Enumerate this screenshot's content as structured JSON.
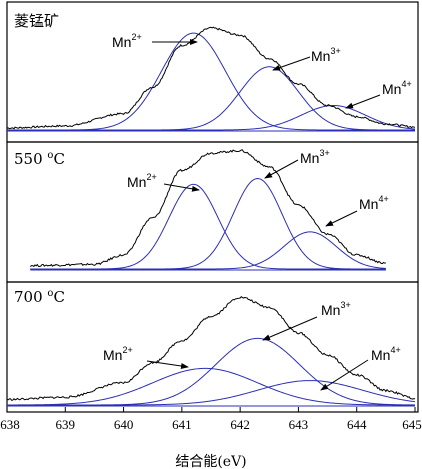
{
  "chart_data": {
    "type": "line",
    "xlabel": "结合能(eV)",
    "xlim": [
      638,
      645
    ],
    "x_ticks": [
      "638",
      "639",
      "640",
      "641",
      "642",
      "643",
      "644",
      "645"
    ],
    "panels": [
      {
        "label": "菱锰矿",
        "envelope": {
          "x": [
            638.0,
            639.0,
            640.0,
            640.5,
            641.0,
            641.5,
            642.0,
            642.5,
            643.0,
            643.5,
            644.0,
            644.5,
            645.0
          ],
          "y": [
            0.02,
            0.04,
            0.16,
            0.42,
            0.83,
            1.0,
            0.93,
            0.7,
            0.45,
            0.24,
            0.13,
            0.06,
            0.03
          ]
        },
        "peaks": [
          {
            "name": "Mn2+",
            "center": 641.2,
            "height": 0.95,
            "sigma": 0.55
          },
          {
            "name": "Mn3+",
            "center": 642.5,
            "height": 0.62,
            "sigma": 0.5
          },
          {
            "name": "Mn4+",
            "center": 643.6,
            "height": 0.24,
            "sigma": 0.55
          }
        ],
        "labels": [
          {
            "base": "Mn",
            "sup": "2+"
          },
          {
            "base": "Mn",
            "sup": "3+"
          },
          {
            "base": "Mn",
            "sup": "4+"
          }
        ]
      },
      {
        "label": "550 °C",
        "envelope": {
          "x": [
            638.4,
            639.5,
            640.0,
            640.5,
            641.0,
            641.5,
            642.0,
            642.5,
            643.0,
            643.5,
            644.0,
            644.5
          ],
          "y": [
            0.03,
            0.04,
            0.12,
            0.44,
            0.85,
            1.0,
            1.02,
            0.88,
            0.55,
            0.3,
            0.12,
            0.05
          ]
        },
        "peaks": [
          {
            "name": "Mn2+",
            "center": 641.2,
            "height": 0.73,
            "sigma": 0.42
          },
          {
            "name": "Mn3+",
            "center": 642.3,
            "height": 0.78,
            "sigma": 0.42
          },
          {
            "name": "Mn4+",
            "center": 643.2,
            "height": 0.32,
            "sigma": 0.45
          }
        ],
        "labels": [
          {
            "base": "Mn",
            "sup": "2+"
          },
          {
            "base": "Mn",
            "sup": "3+"
          },
          {
            "base": "Mn",
            "sup": "4+"
          }
        ]
      },
      {
        "label": "700 °C",
        "envelope": {
          "x": [
            638.0,
            639.0,
            640.0,
            640.5,
            641.0,
            641.5,
            642.0,
            642.5,
            643.0,
            643.5,
            644.0,
            644.5,
            645.0
          ],
          "y": [
            0.05,
            0.07,
            0.2,
            0.38,
            0.58,
            0.8,
            0.97,
            0.88,
            0.65,
            0.45,
            0.27,
            0.13,
            0.06
          ]
        },
        "peaks": [
          {
            "name": "Mn2+",
            "center": 641.4,
            "height": 0.33,
            "sigma": 0.9
          },
          {
            "name": "Mn3+",
            "center": 642.3,
            "height": 0.6,
            "sigma": 0.72
          },
          {
            "name": "Mn4+",
            "center": 643.2,
            "height": 0.22,
            "sigma": 0.9
          }
        ],
        "labels": [
          {
            "base": "Mn",
            "sup": "2+"
          },
          {
            "base": "Mn",
            "sup": "3+"
          },
          {
            "base": "Mn",
            "sup": "4+"
          }
        ]
      }
    ],
    "colors": {
      "envelope": "#000000",
      "components": "#2b2fb5",
      "frame": "#000000"
    }
  }
}
